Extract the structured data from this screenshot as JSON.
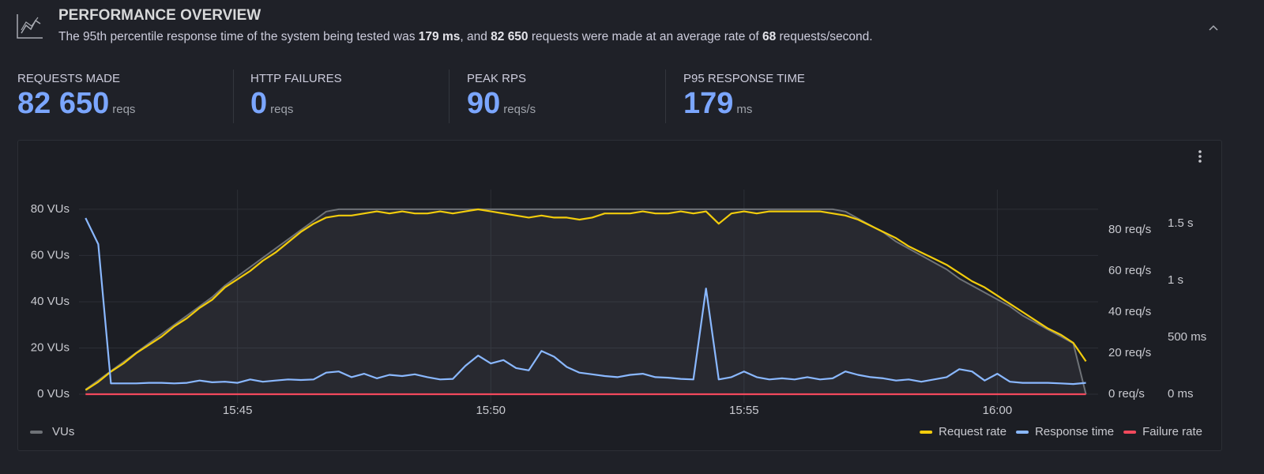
{
  "header": {
    "title": "PERFORMANCE OVERVIEW",
    "description": [
      {
        "text": "The 95th percentile response time of the system being tested was ",
        "bold": false
      },
      {
        "text": "179 ms",
        "bold": true
      },
      {
        "text": ", and ",
        "bold": false
      },
      {
        "text": "82 650",
        "bold": true
      },
      {
        "text": " requests were made at an average rate of ",
        "bold": false
      },
      {
        "text": "68",
        "bold": true
      },
      {
        "text": " requests/second.",
        "bold": false
      }
    ]
  },
  "stats": [
    {
      "label": "REQUESTS MADE",
      "value": "82 650",
      "unit": "reqs"
    },
    {
      "label": "HTTP FAILURES",
      "value": 0,
      "unit": "reqs"
    },
    {
      "label": "PEAK RPS",
      "value": 90,
      "unit": "reqs/s"
    },
    {
      "label": "P95 RESPONSE TIME",
      "value": 179,
      "unit": "ms"
    }
  ],
  "chart_data": {
    "type": "line",
    "grid": true,
    "legend": "bottom",
    "xlim": [
      941.87,
      961.99
    ],
    "xticks": [
      {
        "value": 945,
        "label": "15:45"
      },
      {
        "value": 950,
        "label": "15:50"
      },
      {
        "value": 955,
        "label": "15:55"
      },
      {
        "value": 960,
        "label": "16:00"
      }
    ],
    "ylim": [
      0,
      88.5
    ],
    "yticks": [
      {
        "value": 0,
        "label": "0 VUs"
      },
      {
        "value": 20,
        "label": "20 VUs"
      },
      {
        "value": 40,
        "label": "40 VUs"
      },
      {
        "value": 60,
        "label": "60 VUs"
      },
      {
        "value": 80,
        "label": "80 VUs"
      }
    ],
    "y2lim": [
      0,
      99.6
    ],
    "y2ticks": [
      {
        "value": 0,
        "label": "0 req/s"
      },
      {
        "value": 20,
        "label": "20 req/s"
      },
      {
        "value": 40,
        "label": "40 req/s"
      },
      {
        "value": 60,
        "label": "60 req/s"
      },
      {
        "value": 80,
        "label": "80 req/s"
      }
    ],
    "y3lim": [
      0,
      1800
    ],
    "y3ticks": [
      {
        "value": 0,
        "label": "0 ms"
      },
      {
        "value": 500,
        "label": "500 ms"
      },
      {
        "value": 1000,
        "label": "1 s"
      },
      {
        "value": 1500,
        "label": "1.5 s"
      }
    ],
    "x": [
      942.0,
      942.25,
      942.5,
      942.75,
      943.0,
      943.25,
      943.5,
      943.75,
      944.0,
      944.25,
      944.5,
      944.75,
      945.0,
      945.25,
      945.5,
      945.75,
      946.0,
      946.25,
      946.5,
      946.75,
      947.0,
      947.25,
      947.5,
      947.75,
      948.0,
      948.25,
      948.5,
      948.75,
      949.0,
      949.25,
      949.5,
      949.75,
      950.0,
      950.25,
      950.5,
      950.75,
      951.0,
      951.25,
      951.5,
      951.75,
      952.0,
      952.25,
      952.5,
      952.75,
      953.0,
      953.25,
      953.5,
      953.75,
      954.0,
      954.25,
      954.5,
      954.75,
      955.0,
      955.25,
      955.5,
      955.75,
      956.0,
      956.25,
      956.5,
      956.75,
      957.0,
      957.25,
      957.5,
      957.75,
      958.0,
      958.25,
      958.5,
      958.75,
      959.0,
      959.25,
      959.5,
      959.75,
      960.0,
      960.25,
      960.5,
      960.75,
      961.0,
      961.25,
      961.5,
      961.75
    ],
    "series": [
      {
        "name": "VUs",
        "color": "#6e7277",
        "axis": "y",
        "area": true,
        "values": [
          2,
          6,
          10,
          14,
          18,
          22,
          26,
          30,
          34,
          38,
          42,
          47,
          51,
          55,
          59,
          63,
          67,
          71,
          75,
          79,
          80,
          80,
          80,
          80,
          80,
          80,
          80,
          80,
          80,
          80,
          80,
          80,
          80,
          80,
          80,
          80,
          80,
          80,
          80,
          80,
          80,
          80,
          80,
          80,
          80,
          80,
          80,
          80,
          80,
          80,
          80,
          80,
          80,
          80,
          80,
          80,
          80,
          80,
          80,
          80,
          79,
          76,
          73,
          70,
          66,
          63,
          60,
          57,
          54,
          50,
          47,
          44,
          41,
          38,
          34,
          31,
          28,
          25,
          22,
          0
        ]
      },
      {
        "name": "Request rate",
        "color": "#f2cc0c",
        "axis": "y2",
        "values": [
          2,
          6,
          11,
          15,
          20,
          24,
          28,
          33,
          37,
          42,
          46,
          52,
          56,
          60,
          65,
          69,
          74,
          79,
          83,
          86,
          87,
          87,
          88,
          89,
          88,
          89,
          88,
          88,
          89,
          88,
          89,
          90,
          89,
          88,
          87,
          86,
          87,
          86,
          86,
          85,
          86,
          88,
          88,
          88,
          89,
          88,
          88,
          89,
          88,
          89,
          83,
          88,
          89,
          88,
          89,
          89,
          89,
          89,
          89,
          88,
          87,
          85,
          82,
          79,
          76,
          72,
          69,
          66,
          63,
          59,
          55,
          52,
          48,
          44,
          40,
          36,
          32,
          29,
          25,
          16
        ]
      },
      {
        "name": "Response time",
        "color": "#8ab8ff",
        "axis": "y3",
        "values": [
          1550,
          1320,
          95,
          95,
          95,
          100,
          100,
          95,
          100,
          120,
          105,
          110,
          100,
          130,
          110,
          120,
          130,
          125,
          130,
          190,
          200,
          150,
          180,
          140,
          170,
          160,
          175,
          150,
          130,
          135,
          250,
          340,
          270,
          300,
          230,
          210,
          380,
          330,
          240,
          190,
          175,
          160,
          150,
          170,
          180,
          150,
          145,
          135,
          130,
          930,
          130,
          150,
          200,
          150,
          130,
          140,
          130,
          150,
          130,
          140,
          200,
          170,
          150,
          140,
          120,
          130,
          110,
          130,
          150,
          220,
          200,
          120,
          180,
          110,
          100,
          100,
          100,
          95,
          90,
          100
        ]
      },
      {
        "name": "Failure rate",
        "color": "#f2495c",
        "axis": "y2",
        "values": [
          0,
          0,
          0,
          0,
          0,
          0,
          0,
          0,
          0,
          0,
          0,
          0,
          0,
          0,
          0,
          0,
          0,
          0,
          0,
          0,
          0,
          0,
          0,
          0,
          0,
          0,
          0,
          0,
          0,
          0,
          0,
          0,
          0,
          0,
          0,
          0,
          0,
          0,
          0,
          0,
          0,
          0,
          0,
          0,
          0,
          0,
          0,
          0,
          0,
          0,
          0,
          0,
          0,
          0,
          0,
          0,
          0,
          0,
          0,
          0,
          0,
          0,
          0,
          0,
          0,
          0,
          0,
          0,
          0,
          0,
          0,
          0,
          0,
          0,
          0,
          0,
          0,
          0,
          0,
          0
        ]
      }
    ]
  }
}
